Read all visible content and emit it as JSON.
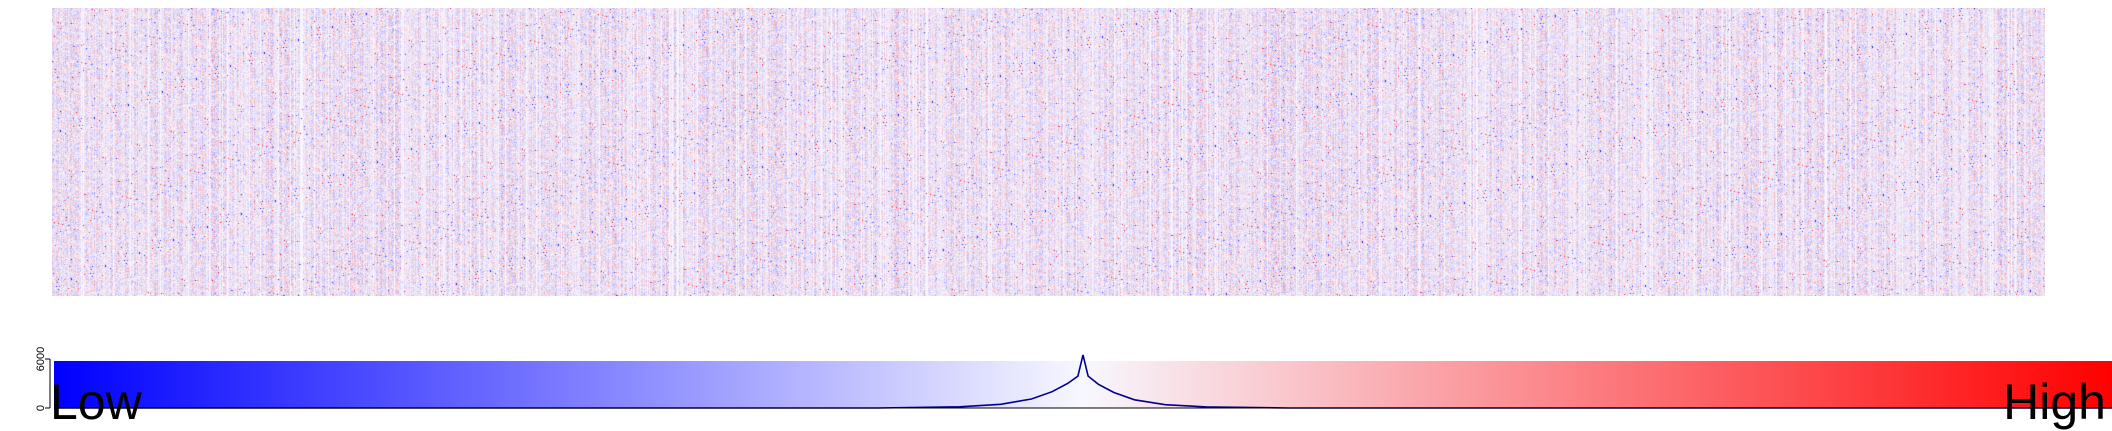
{
  "chart_data": [
    {
      "type": "heatmap",
      "colors": {
        "low": "#0000ff",
        "mid": "#f8f8ff",
        "high": "#ff0000"
      },
      "grid": false,
      "legend": "none"
    },
    {
      "type": "area",
      "role": "color-key histogram",
      "colors": {
        "low": "#0000ff",
        "mid": "#f8f8ff",
        "high": "#ff0000",
        "line": "#00008b"
      },
      "xlabels": {
        "low": "Low",
        "high": "High"
      },
      "yticks": [
        "0",
        "6000"
      ],
      "ylim": [
        0,
        6000
      ],
      "x": [
        -1.0,
        -0.2,
        -0.12,
        -0.08,
        -0.05,
        -0.03,
        -0.015,
        -0.005,
        0.0,
        0.005,
        0.015,
        0.03,
        0.05,
        0.08,
        0.12,
        0.2,
        1.0
      ],
      "values": [
        0,
        0,
        150,
        450,
        1100,
        2000,
        3000,
        3900,
        6500,
        3900,
        2900,
        1900,
        1000,
        400,
        130,
        0,
        0
      ]
    }
  ]
}
